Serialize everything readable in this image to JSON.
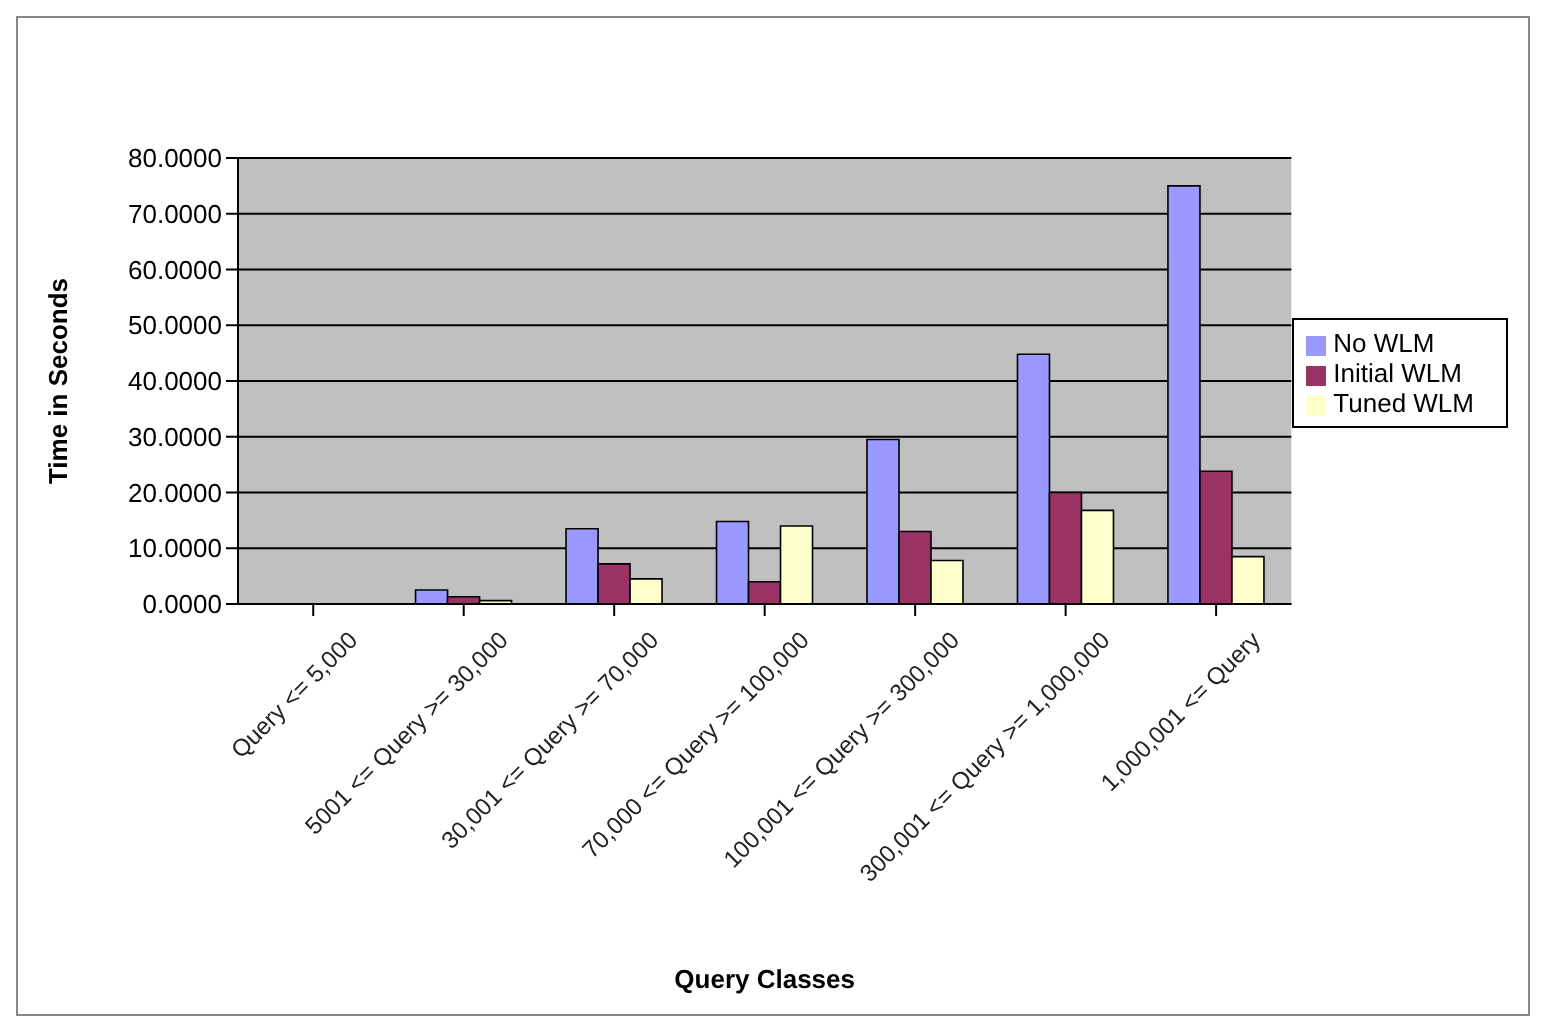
{
  "chart_data": {
    "type": "bar",
    "xlabel": "Query Classes",
    "ylabel": "Time in Seconds",
    "categories": [
      "Query <= 5,000",
      "5001 <= Query >= 30,000",
      "30,001 <= Query >= 70,000",
      "70,000 <= Query >= 100,000",
      "100,001 <= Query >= 300,000",
      "300,001 <= Query >= 1,000,000",
      "1,000,001 <= Query"
    ],
    "series": [
      {
        "name": "No WLM",
        "color": "#9999ff",
        "values": [
          0,
          2.5,
          13.5,
          14.8,
          29.5,
          44.8,
          75
        ]
      },
      {
        "name": "Initial WLM",
        "color": "#993366",
        "values": [
          0,
          1.3,
          7.2,
          4,
          13,
          20,
          23.8
        ]
      },
      {
        "name": "Tuned WLM",
        "color": "#ffffcc",
        "values": [
          0,
          0.6,
          4.5,
          14,
          7.8,
          16.8,
          8.5
        ]
      }
    ],
    "ylim": [
      0,
      80
    ],
    "yticks": [
      {
        "value": 0,
        "label": "0.0000"
      },
      {
        "value": 10,
        "label": "10.0000"
      },
      {
        "value": 20,
        "label": "20.0000"
      },
      {
        "value": 30,
        "label": "30.0000"
      },
      {
        "value": 40,
        "label": "40.0000"
      },
      {
        "value": 50,
        "label": "50.0000"
      },
      {
        "value": 60,
        "label": "60.0000"
      },
      {
        "value": 70,
        "label": "70.0000"
      },
      {
        "value": 80,
        "label": "80.0000"
      }
    ],
    "grid": "y",
    "legend": "right"
  }
}
